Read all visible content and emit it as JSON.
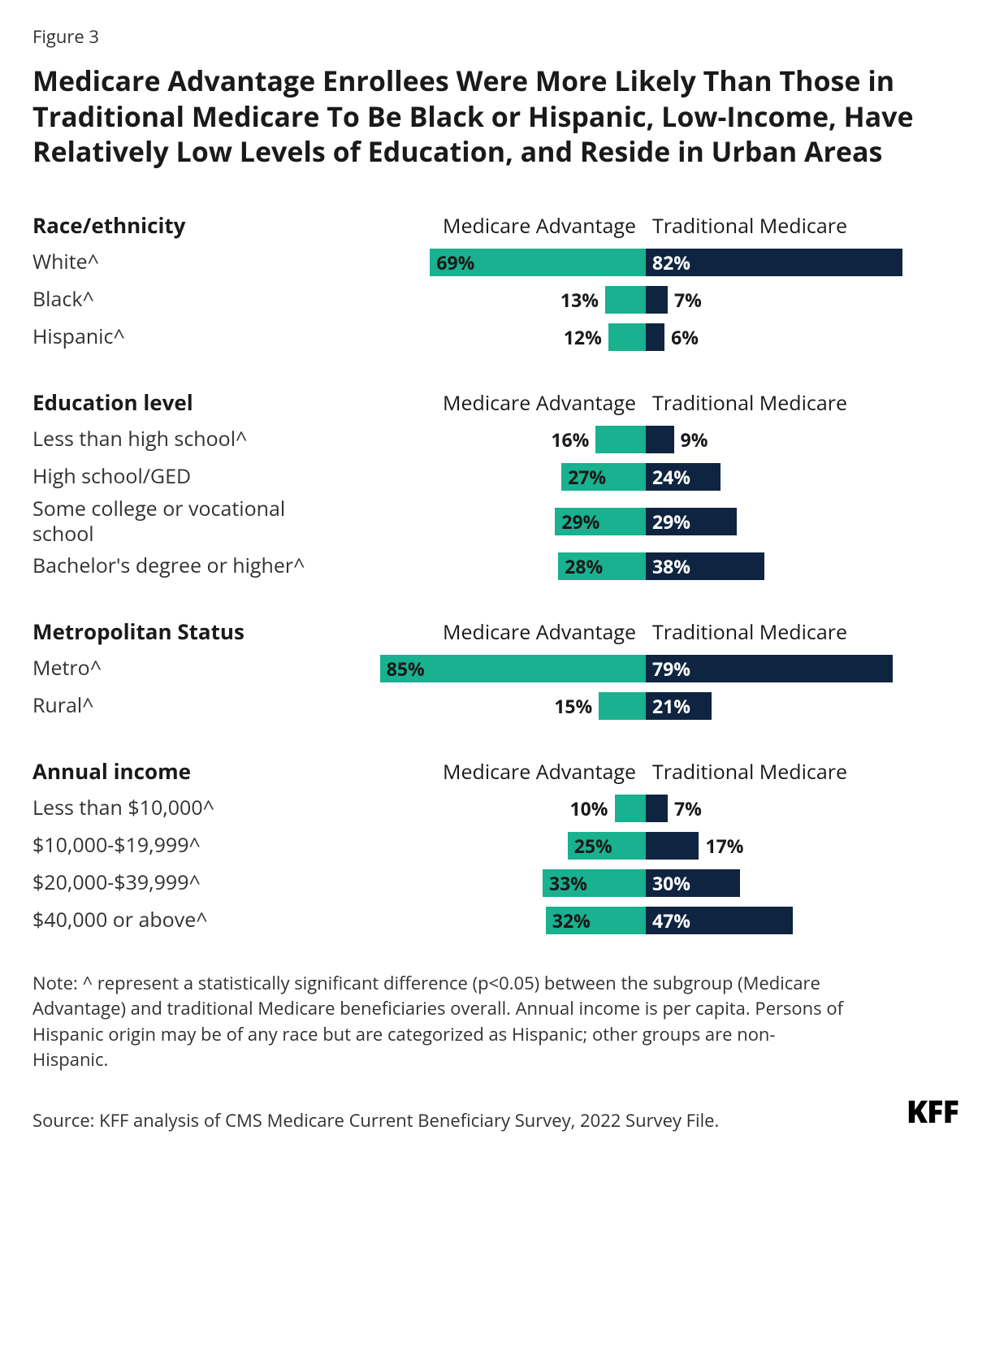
{
  "figure_label": "Figure 3",
  "headline": "Medicare Advantage Enrollees Were More Likely Than Those in Traditional Medicare To Be Black or Hispanic, Low-Income, Have Relatively Low Levels of Education, and Reside in Urban Areas",
  "series_labels": {
    "ma": "Medicare Advantage",
    "tm": "Traditional Medicare"
  },
  "colors": {
    "ma": "#19b18f",
    "tm": "#0f2440",
    "text": "#323232",
    "bg": "#ffffff"
  },
  "bar_scale_max": 100,
  "value_inside_threshold": 20,
  "sections": [
    {
      "id": "race",
      "title": "Race/ethnicity",
      "rows": [
        {
          "label": "White^",
          "ma": 69,
          "tm": 82
        },
        {
          "label": "Black^",
          "ma": 13,
          "tm": 7
        },
        {
          "label": "Hispanic^",
          "ma": 12,
          "tm": 6
        }
      ]
    },
    {
      "id": "edu",
      "title": "Education level",
      "rows": [
        {
          "label": "Less than high school^",
          "ma": 16,
          "tm": 9
        },
        {
          "label": "High school/GED",
          "ma": 27,
          "tm": 24
        },
        {
          "label": "Some college or vocational school",
          "ma": 29,
          "tm": 29
        },
        {
          "label": "Bachelor's degree or higher^",
          "ma": 28,
          "tm": 38
        }
      ]
    },
    {
      "id": "metro",
      "title": "Metropolitan Status",
      "rows": [
        {
          "label": "Metro^",
          "ma": 85,
          "tm": 79
        },
        {
          "label": "Rural^",
          "ma": 15,
          "tm": 21
        }
      ]
    },
    {
      "id": "income",
      "title": "Annual income",
      "rows": [
        {
          "label": "Less than $10,000^",
          "ma": 10,
          "tm": 7
        },
        {
          "label": "$10,000-$19,999^",
          "ma": 25,
          "tm": 17
        },
        {
          "label": "$20,000-$39,999^",
          "ma": 33,
          "tm": 30
        },
        {
          "label": "$40,000 or above^",
          "ma": 32,
          "tm": 47
        }
      ]
    }
  ],
  "note": "Note: ^ represent a statistically significant difference (p<0.05) between the subgroup (Medicare Advantage) and traditional Medicare beneficiaries overall. Annual income is per capita. Persons of Hispanic origin may be of any race but are categorized as Hispanic; other groups are non-Hispanic.",
  "source": "Source: KFF analysis of CMS Medicare Current Beneficiary Survey, 2022 Survey File.",
  "brand": "KFF"
}
